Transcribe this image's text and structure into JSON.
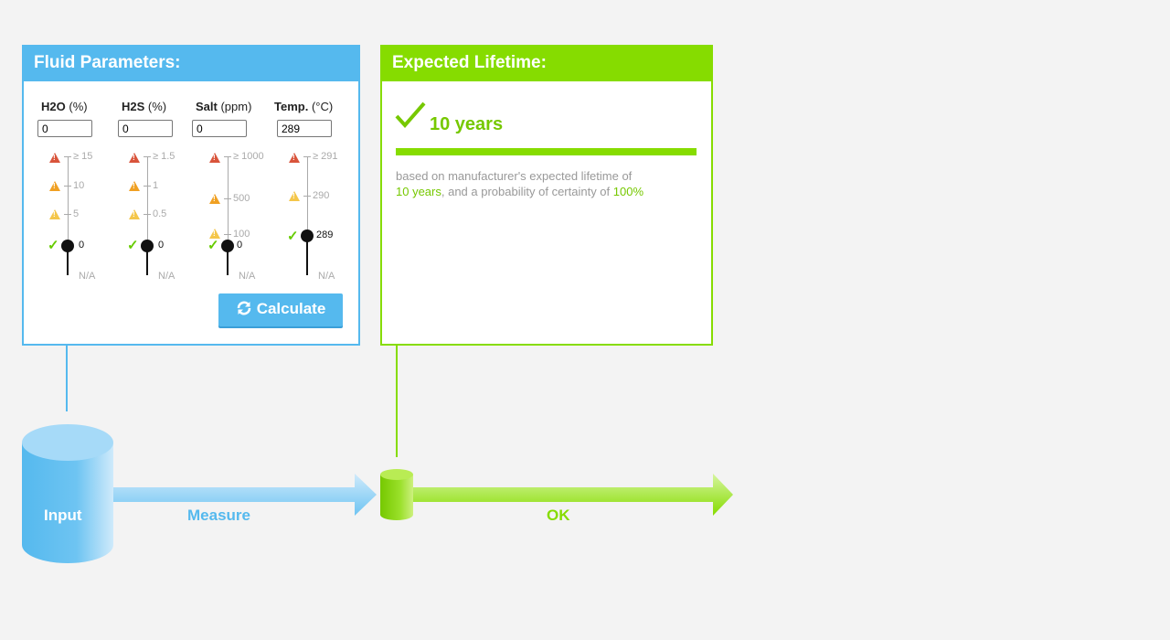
{
  "fluid_panel": {
    "title": "Fluid Parameters:",
    "params": [
      {
        "name": "H2O",
        "unit": "(%)",
        "value": "0",
        "ticks": [
          "≥ 15",
          "10",
          "5"
        ],
        "current": "0",
        "na": "N/A"
      },
      {
        "name": "H2S",
        "unit": "(%)",
        "value": "0",
        "ticks": [
          "≥ 1.5",
          "1",
          "0.5"
        ],
        "current": "0",
        "na": "N/A"
      },
      {
        "name": "Salt",
        "unit": "(ppm)",
        "value": "0",
        "ticks": [
          "≥ 1000",
          "500",
          "100"
        ],
        "current": "0",
        "na": "N/A"
      },
      {
        "name": "Temp.",
        "unit": "(°C)",
        "value": "289",
        "ticks": [
          "≥ 291",
          "290"
        ],
        "current": "289",
        "na": "N/A"
      }
    ],
    "calculate_label": "Calculate"
  },
  "lifetime_panel": {
    "title": "Expected Lifetime:",
    "result": "10 years",
    "desc_prefix": "based on manufacturer's expected lifetime of",
    "desc_years": "10 years",
    "desc_mid": ", and a probability of certainty of ",
    "desc_prob": "100%"
  },
  "flow": {
    "input_label": "Input",
    "measure_label": "Measure",
    "ok_label": "OK"
  },
  "colors": {
    "blue": "#55b9ee",
    "green": "#86dc00"
  },
  "icons": [
    "warning-icon",
    "check-icon",
    "refresh-icon"
  ]
}
